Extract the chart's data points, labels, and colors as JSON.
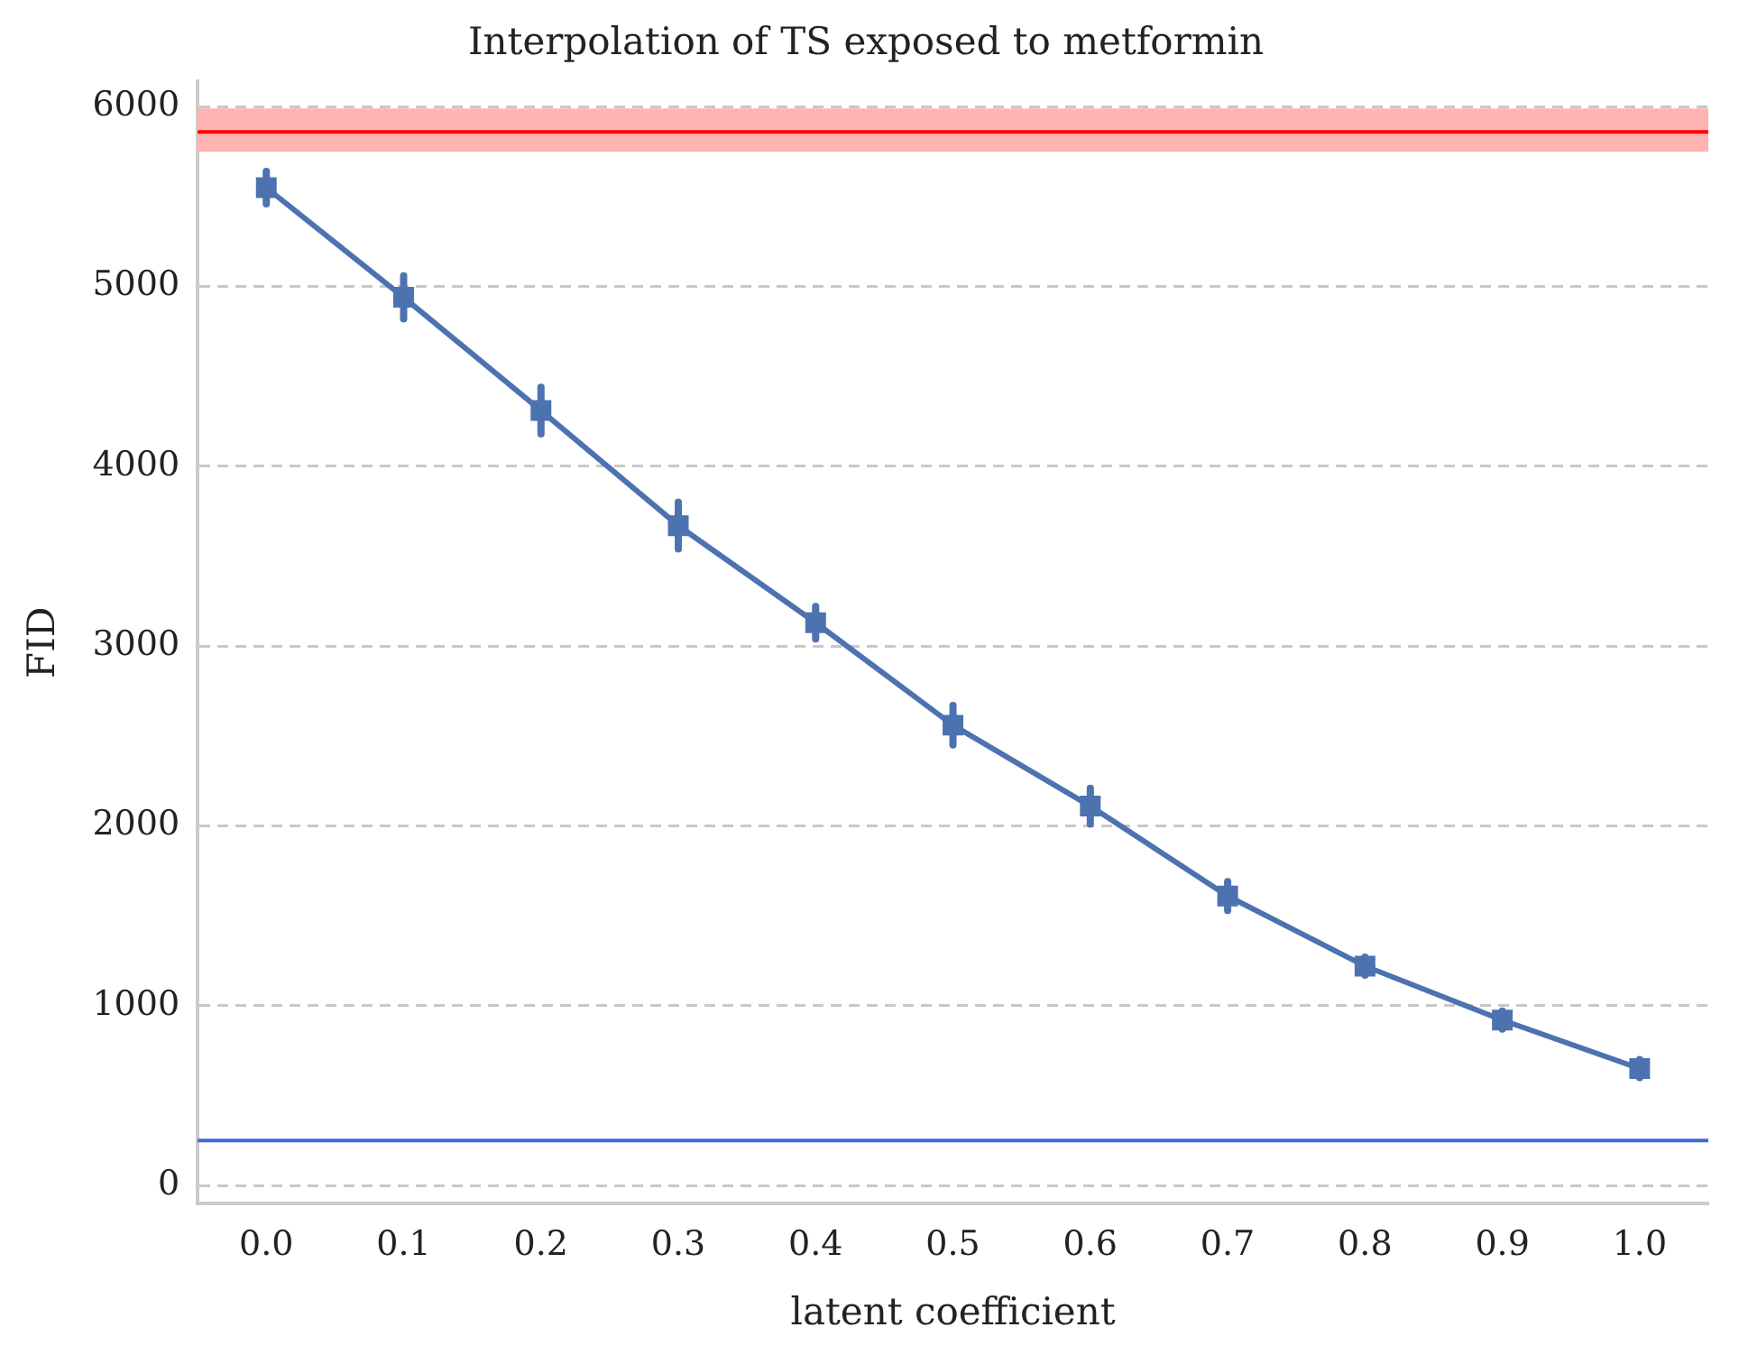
{
  "chart_data": {
    "type": "line",
    "title": "Interpolation of TS exposed to metformin",
    "xlabel": "latent coefficient",
    "ylabel": "FID",
    "categories": [
      "0.0",
      "0.1",
      "0.2",
      "0.3",
      "0.4",
      "0.5",
      "0.6",
      "0.7",
      "0.8",
      "0.9",
      "1.0"
    ],
    "series": [
      {
        "color": "#4c72b0",
        "values": [
          5550,
          4940,
          4310,
          3670,
          3130,
          2560,
          2110,
          1610,
          1220,
          920,
          650
        ],
        "errors": [
          90,
          120,
          130,
          130,
          90,
          110,
          100,
          80,
          50,
          50,
          50
        ]
      }
    ],
    "ylim": [
      -100,
      6140
    ],
    "yticks": [
      0,
      1000,
      2000,
      3000,
      4000,
      5000,
      6000
    ],
    "grid": "y",
    "legend": false,
    "marker": "square",
    "line_style": "solid",
    "ref_lines": [
      {
        "axis": "y",
        "value": 5860,
        "color": "#ff0000"
      },
      {
        "axis": "y",
        "value": 250,
        "color": "#4169d8"
      }
    ],
    "bands": [
      {
        "axis": "y",
        "from": 5750,
        "to": 5990,
        "color": "#ffb3b3"
      }
    ]
  }
}
